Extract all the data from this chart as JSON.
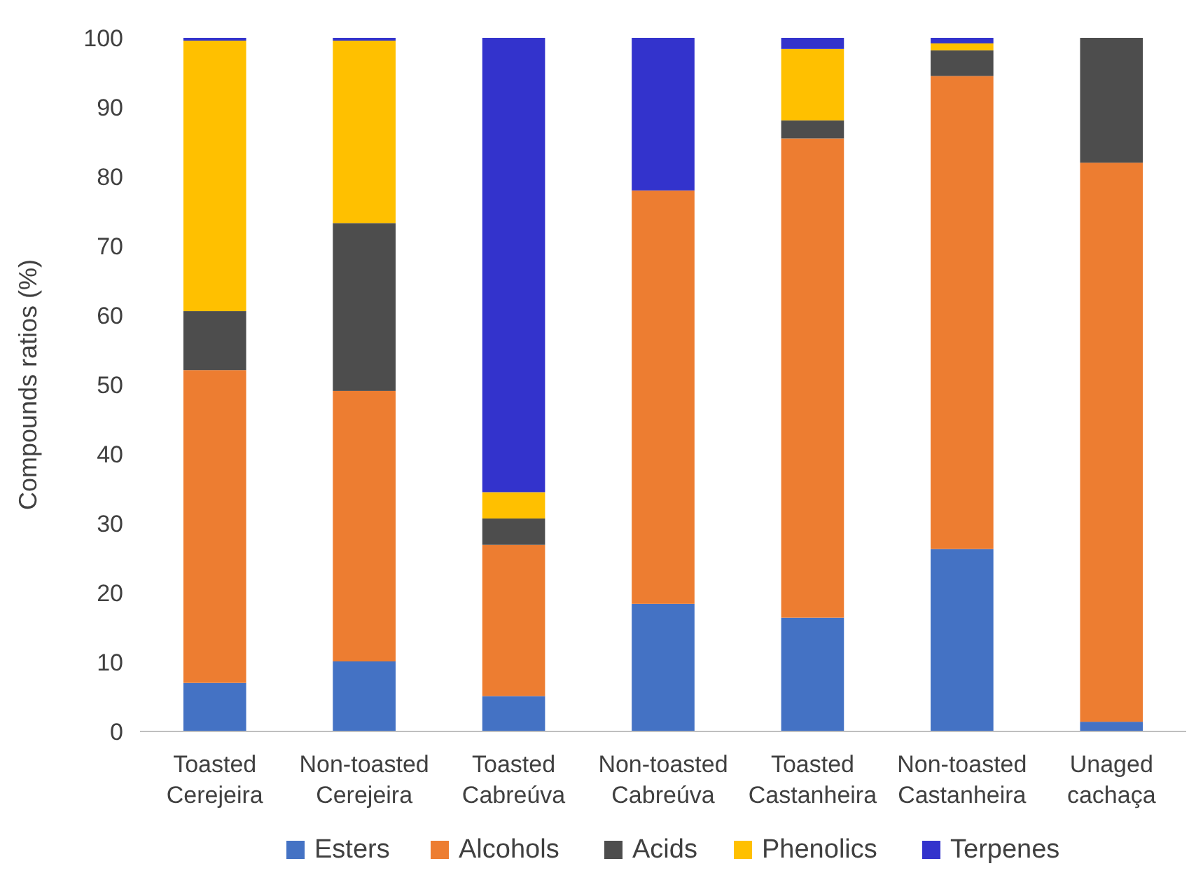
{
  "chart_data": {
    "type": "bar",
    "stacked": true,
    "ylabel": "Compounds ratios (%)",
    "categories": [
      "Toasted Cerejeira",
      "Non-toasted Cerejeira",
      "Toasted Cabreúva",
      "Non-toasted Cabreúva",
      "Toasted Castanheira",
      "Non-toasted Castanheira",
      "Unaged cachaça"
    ],
    "series": [
      {
        "name": "Esters",
        "color": "#4472c4",
        "values": [
          7,
          10.1,
          5.1,
          18.4,
          16.4,
          26.3,
          1.4
        ]
      },
      {
        "name": "Alcohols",
        "color": "#ed7d31",
        "values": [
          45.1,
          39,
          21.8,
          59.6,
          69.1,
          68.2,
          80.6
        ]
      },
      {
        "name": "Acids",
        "color": "#4d4d4d",
        "values": [
          8.5,
          24.2,
          3.8,
          0,
          2.6,
          3.7,
          18
        ]
      },
      {
        "name": "Phenolics",
        "color": "#ffc000",
        "values": [
          39,
          26.3,
          3.8,
          0,
          10.3,
          1,
          0
        ]
      },
      {
        "name": "Terpenes",
        "color": "#3333cc",
        "values": [
          0.4,
          0.4,
          65.5,
          22,
          1.6,
          0.8,
          0
        ]
      }
    ],
    "ylim": [
      0,
      100
    ],
    "yticks": [
      0,
      10,
      20,
      30,
      40,
      50,
      60,
      70,
      80,
      90,
      100
    ],
    "grid": false,
    "legend": "bottom"
  }
}
